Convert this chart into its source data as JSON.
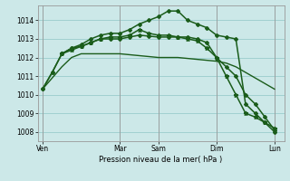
{
  "bg_color": "#cce8e8",
  "grid_color": "#99cccc",
  "dark_green": "#1a5c1a",
  "xlabel": "Pression niveau de la mer( hPa )",
  "ylim": [
    1007.5,
    1014.8
  ],
  "yticks": [
    1008,
    1009,
    1010,
    1011,
    1012,
    1013,
    1014
  ],
  "day_labels": [
    "Ven",
    "Mar",
    "Sam",
    "Dim",
    "Lun"
  ],
  "day_positions": [
    0,
    8,
    12,
    18,
    24
  ],
  "xlim": [
    -0.5,
    25
  ],
  "series0_x": [
    0,
    1,
    2,
    3,
    4,
    5,
    6,
    7,
    8,
    9,
    10,
    11,
    12,
    13,
    14,
    15,
    16,
    17,
    18,
    19,
    20,
    21,
    22,
    23,
    24
  ],
  "series0_y": [
    1010.3,
    1010.9,
    1011.5,
    1012.0,
    1012.2,
    1012.2,
    1012.2,
    1012.2,
    1012.2,
    1012.15,
    1012.1,
    1012.05,
    1012.0,
    1012.0,
    1012.0,
    1011.95,
    1011.9,
    1011.85,
    1011.8,
    1011.7,
    1011.5,
    1011.2,
    1010.9,
    1010.6,
    1010.3
  ],
  "series1_x": [
    0,
    1,
    2,
    3,
    4,
    5,
    6,
    7,
    8,
    9,
    10,
    11,
    12,
    13,
    14,
    15,
    16,
    17,
    18,
    19,
    20,
    21,
    22,
    23,
    24
  ],
  "series1_y": [
    1010.3,
    1011.2,
    1012.2,
    1012.5,
    1012.6,
    1012.8,
    1013.0,
    1013.0,
    1013.0,
    1013.1,
    1013.2,
    1013.15,
    1013.1,
    1013.1,
    1013.1,
    1013.1,
    1013.0,
    1012.8,
    1012.0,
    1011.5,
    1011.0,
    1010.0,
    1009.5,
    1008.8,
    1008.1
  ],
  "series2_x": [
    0,
    1,
    2,
    3,
    4,
    5,
    6,
    7,
    8,
    9,
    10,
    11,
    12,
    13,
    14,
    15,
    16,
    17,
    18,
    19,
    20,
    21,
    22,
    23,
    24
  ],
  "series2_y": [
    1010.3,
    1011.2,
    1012.2,
    1012.5,
    1012.7,
    1013.0,
    1013.2,
    1013.3,
    1013.3,
    1013.5,
    1013.8,
    1014.0,
    1014.2,
    1014.5,
    1014.5,
    1014.0,
    1013.8,
    1013.6,
    1013.2,
    1013.1,
    1013.0,
    1009.5,
    1009.0,
    1008.5,
    1008.0
  ],
  "series3_x": [
    2,
    3,
    4,
    5,
    6,
    7,
    8,
    9,
    10,
    11,
    12,
    13,
    14,
    15,
    16,
    17,
    18,
    19,
    20,
    21,
    22,
    23,
    24
  ],
  "series3_y": [
    1012.2,
    1012.4,
    1012.6,
    1012.8,
    1013.0,
    1013.1,
    1013.1,
    1013.2,
    1013.5,
    1013.3,
    1013.2,
    1013.2,
    1013.1,
    1013.0,
    1012.9,
    1012.5,
    1012.0,
    1011.0,
    1010.0,
    1009.0,
    1008.8,
    1008.5,
    1008.2
  ]
}
